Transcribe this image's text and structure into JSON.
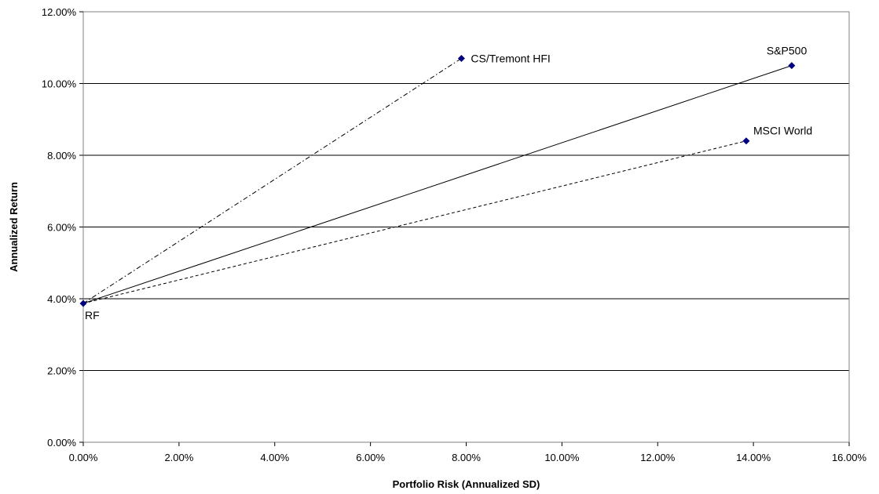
{
  "chart_data": {
    "type": "scatter",
    "title": "",
    "xlabel": "Portfolio Risk (Annualized SD)",
    "ylabel": "Annualized Return",
    "xlim": [
      0,
      16
    ],
    "ylim": [
      0,
      12
    ],
    "x_ticks": [
      "0.00%",
      "2.00%",
      "4.00%",
      "6.00%",
      "8.00%",
      "10.00%",
      "12.00%",
      "14.00%",
      "16.00%"
    ],
    "y_ticks": [
      "0.00%",
      "2.00%",
      "4.00%",
      "6.00%",
      "8.00%",
      "10.00%",
      "12.00%"
    ],
    "grid": "horizontal",
    "points": [
      {
        "label": "RF",
        "x": 0.0,
        "y": 3.87
      },
      {
        "label": "CS/Tremont HFI",
        "x": 7.9,
        "y": 10.7
      },
      {
        "label": "S&P500",
        "x": 14.8,
        "y": 10.5
      },
      {
        "label": "MSCI World",
        "x": 13.85,
        "y": 8.4
      }
    ],
    "lines": [
      {
        "from": "RF",
        "to": "CS/Tremont HFI",
        "style": "dash-dot"
      },
      {
        "from": "RF",
        "to": "S&P500",
        "style": "solid"
      },
      {
        "from": "RF",
        "to": "MSCI World",
        "style": "dashed"
      }
    ],
    "colors": {
      "marker": "#000080",
      "line": "#000000",
      "grid": "#000000"
    }
  }
}
